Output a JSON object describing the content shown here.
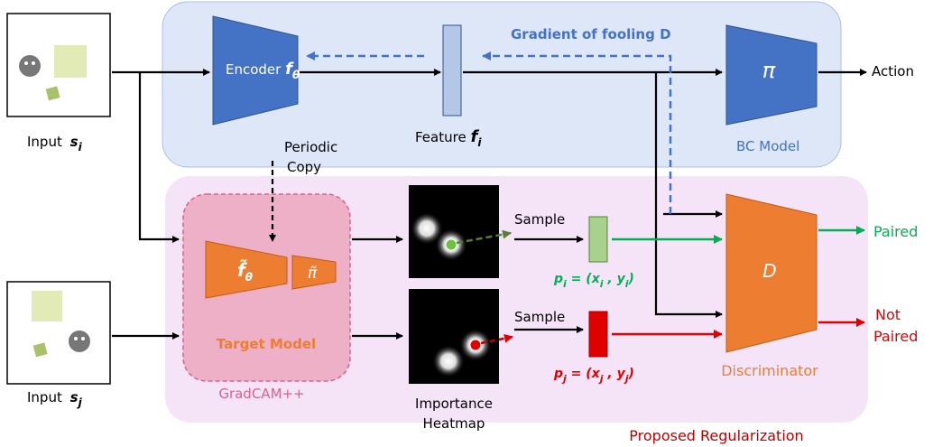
{
  "inputs": [
    {
      "label": "Input",
      "var": "s",
      "sub": "i"
    },
    {
      "label": "Input",
      "var": "s",
      "sub": "j"
    }
  ],
  "bc_model": {
    "label": "BC Model",
    "encoder": {
      "label": "Encoder",
      "var": "f",
      "sub": "θ"
    },
    "feature": {
      "label": "Feature",
      "var": "f",
      "sub": "i"
    },
    "policy": "π",
    "output": "Action",
    "gradient": "Gradient of fooling D"
  },
  "periodic_copy": [
    "Periodic",
    "Copy"
  ],
  "target_model": {
    "label": "Target Model",
    "encoder": {
      "var": "f̃",
      "sub": "θ"
    },
    "policy": "π̃",
    "method": "GradCAM++"
  },
  "heatmap": {
    "label": [
      "Importance",
      "Heatmap"
    ]
  },
  "samples": [
    {
      "label": "Sample",
      "point": [
        "p",
        "i",
        " = (",
        "x",
        "i",
        " , ",
        "y",
        "i",
        ")"
      ]
    },
    {
      "label": "Sample",
      "point": [
        "p",
        "j",
        " = (",
        "x",
        "j",
        " , ",
        "y",
        "j",
        ")"
      ]
    }
  ],
  "discriminator": {
    "symbol": "D",
    "label": "Discriminator",
    "outputs": [
      "Paired",
      [
        "Not",
        "Paired"
      ]
    ]
  },
  "region": "Proposed Regularization"
}
